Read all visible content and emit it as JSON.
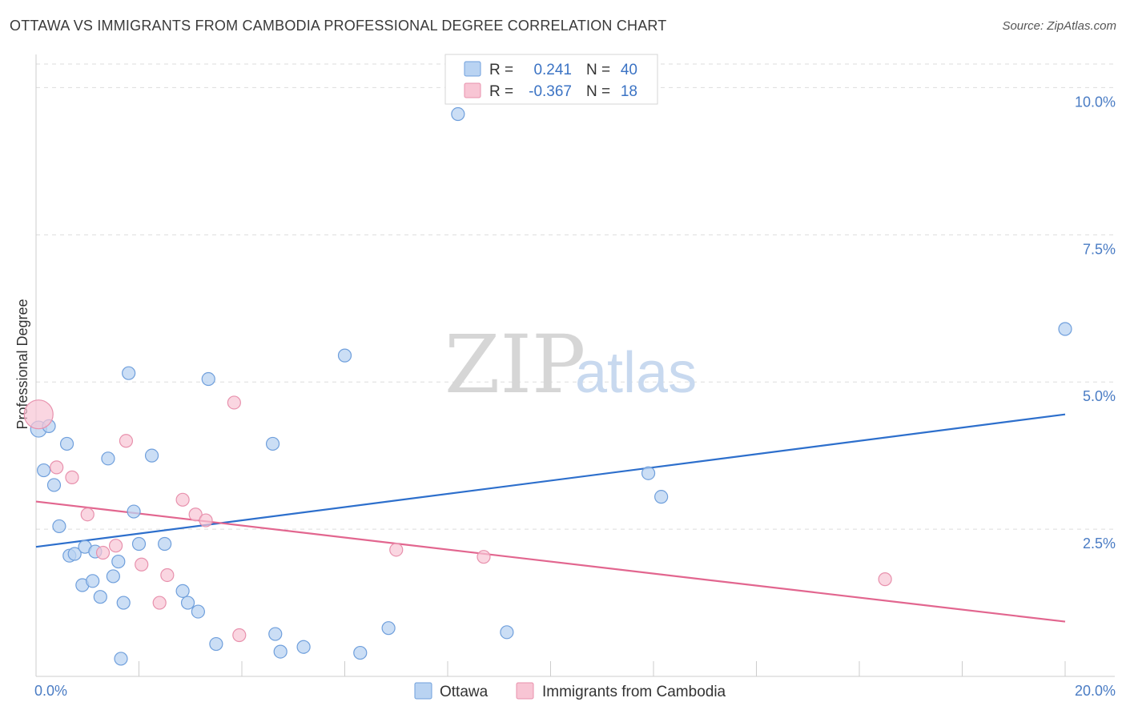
{
  "title": "OTTAWA VS IMMIGRANTS FROM CAMBODIA PROFESSIONAL DEGREE CORRELATION CHART",
  "source": "Source: ZipAtlas.com",
  "watermark": {
    "zip": "ZIP",
    "atlas": "atlas"
  },
  "colors": {
    "ottawa_fill": "#b9d3f2",
    "ottawa_stroke": "#6f9fdc",
    "ottawa_line": "#2d6fcc",
    "cambodia_fill": "#f8c5d4",
    "cambodia_stroke": "#e891ad",
    "cambodia_line": "#e2668f",
    "grid": "#dddddd",
    "tick_text": "#4a7cc4"
  },
  "legend_top": {
    "rows": [
      {
        "r_label": "R =",
        "r_value": "0.241",
        "n_label": "N =",
        "n_value": "40"
      },
      {
        "r_label": "R =",
        "r_value": "-0.367",
        "n_label": "N =",
        "n_value": "18"
      }
    ]
  },
  "legend_bottom": {
    "items": [
      "Ottawa",
      "Immigrants from Cambodia"
    ]
  },
  "chart_data": {
    "type": "scatter",
    "title": "OTTAWA VS IMMIGRANTS FROM CAMBODIA PROFESSIONAL DEGREE CORRELATION CHART",
    "xlabel": "",
    "ylabel": "Professional Degree",
    "xlim": [
      0,
      20
    ],
    "ylim": [
      0,
      10.4
    ],
    "x_tick_labels": [
      "0.0%",
      "20.0%"
    ],
    "y_ticks": [
      2.5,
      5.0,
      7.5,
      10.0
    ],
    "y_tick_labels": [
      "2.5%",
      "5.0%",
      "7.5%",
      "10.0%"
    ],
    "grid": true,
    "legend_placement": "top-center",
    "series": [
      {
        "name": "Ottawa",
        "r": 0.241,
        "n": 40,
        "trend": {
          "x": [
            0,
            20
          ],
          "y": [
            2.2,
            4.45
          ]
        },
        "points": [
          [
            0.05,
            4.2
          ],
          [
            0.25,
            4.25
          ],
          [
            0.15,
            3.5
          ],
          [
            0.35,
            3.25
          ],
          [
            0.6,
            3.95
          ],
          [
            0.45,
            2.55
          ],
          [
            0.65,
            2.05
          ],
          [
            0.75,
            2.08
          ],
          [
            0.95,
            2.2
          ],
          [
            1.15,
            2.12
          ],
          [
            0.9,
            1.55
          ],
          [
            1.1,
            1.62
          ],
          [
            1.25,
            1.35
          ],
          [
            1.4,
            3.7
          ],
          [
            1.5,
            1.7
          ],
          [
            1.6,
            1.95
          ],
          [
            1.7,
            1.25
          ],
          [
            1.8,
            5.15
          ],
          [
            1.9,
            2.8
          ],
          [
            2.0,
            2.25
          ],
          [
            2.25,
            3.75
          ],
          [
            2.5,
            2.25
          ],
          [
            2.85,
            1.45
          ],
          [
            2.95,
            1.25
          ],
          [
            3.15,
            1.1
          ],
          [
            3.35,
            5.05
          ],
          [
            3.5,
            0.55
          ],
          [
            4.6,
            3.95
          ],
          [
            4.65,
            0.72
          ],
          [
            4.75,
            0.42
          ],
          [
            5.2,
            0.5
          ],
          [
            6.0,
            5.45
          ],
          [
            6.3,
            0.4
          ],
          [
            6.85,
            0.82
          ],
          [
            9.15,
            0.75
          ],
          [
            11.9,
            3.45
          ],
          [
            12.15,
            3.05
          ],
          [
            20.0,
            5.9
          ],
          [
            1.65,
            0.3
          ],
          [
            8.2,
            9.55
          ]
        ]
      },
      {
        "name": "Immigrants from Cambodia",
        "r": -0.367,
        "n": 18,
        "trend": {
          "x": [
            0,
            20
          ],
          "y": [
            2.97,
            0.93
          ]
        },
        "points": [
          [
            0.05,
            4.45
          ],
          [
            0.4,
            3.55
          ],
          [
            0.7,
            3.38
          ],
          [
            1.0,
            2.75
          ],
          [
            1.3,
            2.1
          ],
          [
            1.55,
            2.22
          ],
          [
            1.75,
            4.0
          ],
          [
            2.05,
            1.9
          ],
          [
            2.4,
            1.25
          ],
          [
            2.55,
            1.72
          ],
          [
            2.85,
            3.0
          ],
          [
            3.1,
            2.75
          ],
          [
            3.3,
            2.65
          ],
          [
            3.85,
            4.65
          ],
          [
            3.95,
            0.7
          ],
          [
            7.0,
            2.15
          ],
          [
            8.7,
            2.03
          ],
          [
            16.5,
            1.65
          ]
        ]
      }
    ]
  }
}
